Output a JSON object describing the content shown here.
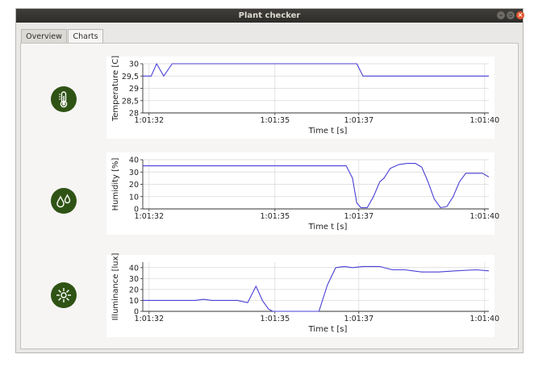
{
  "window": {
    "title": "Plant checker",
    "controls": [
      "minimize-icon",
      "maximize-icon",
      "close-icon"
    ]
  },
  "tabs": [
    {
      "label": "Overview",
      "active": false
    },
    {
      "label": "Charts",
      "active": true
    }
  ],
  "colors": {
    "icon_bg": "#2f5315",
    "series_line": "#4a3fd6",
    "grid": "#d8d8d8"
  },
  "sensor_icons": [
    "thermometer-icon",
    "water-drops-icon",
    "sun-icon"
  ],
  "chart_data": [
    {
      "type": "line",
      "xlabel": "Time t [s]",
      "ylabel": "Temperature [C]",
      "xticks": [
        "1:01:32",
        "1:01:35",
        "1:01:37",
        "1:01:40"
      ],
      "xtick_values": [
        92,
        95,
        97,
        100
      ],
      "xlim": [
        91.85,
        100.1
      ],
      "yticks": [
        "30",
        "29,5",
        "29",
        "28,5",
        "28"
      ],
      "ylim": [
        28,
        30
      ],
      "grid": true,
      "series": [
        {
          "x": [
            91.85,
            92.05,
            92.18,
            92.35,
            92.55,
            96.95,
            97.1,
            100.1
          ],
          "y": [
            29.5,
            29.5,
            30,
            29.5,
            30,
            30,
            29.5,
            29.5
          ]
        }
      ]
    },
    {
      "type": "line",
      "xlabel": "Time t [s]",
      "ylabel": "Humidity [%]",
      "xticks": [
        "1:01:32",
        "1:01:35",
        "1:01:37",
        "1:01:40"
      ],
      "xtick_values": [
        92,
        95,
        97,
        100
      ],
      "xlim": [
        91.85,
        100.1
      ],
      "yticks": [
        "40",
        "30",
        "20",
        "10",
        "0"
      ],
      "ylim": [
        0,
        40
      ],
      "grid": true,
      "series": [
        {
          "x": [
            91.85,
            96.7,
            96.85,
            96.95,
            97.05,
            97.2,
            97.35,
            97.5,
            97.6,
            97.75,
            97.95,
            98.15,
            98.35,
            98.5,
            98.65,
            98.8,
            98.95,
            99.1,
            99.25,
            99.4,
            99.55,
            99.75,
            99.95,
            100.1
          ],
          "y": [
            35,
            35,
            25,
            5,
            1,
            1,
            10,
            22,
            25,
            33,
            36,
            37,
            37,
            34,
            22,
            8,
            1,
            2,
            10,
            22,
            29,
            29,
            29,
            26
          ]
        }
      ]
    },
    {
      "type": "line",
      "xlabel": "Time t [s]",
      "ylabel": "Illuminance [lux]",
      "xticks": [
        "1:01:32",
        "1:01:35",
        "1:01:37",
        "1:01:40"
      ],
      "xtick_values": [
        92,
        95,
        97,
        100
      ],
      "xlim": [
        91.85,
        100.1
      ],
      "yticks": [
        "40",
        "30",
        "20",
        "10",
        "0"
      ],
      "ylim": [
        0,
        45
      ],
      "grid": true,
      "series": [
        {
          "x": [
            91.85,
            93.1,
            93.3,
            93.5,
            94.1,
            94.35,
            94.55,
            94.7,
            94.85,
            94.95,
            95.45,
            96.05,
            96.25,
            96.45,
            96.65,
            96.85,
            97.1,
            97.5,
            97.8,
            98.1,
            98.5,
            98.9,
            99.3,
            99.8,
            100.1
          ],
          "y": [
            10,
            10,
            11,
            10,
            10,
            8,
            23,
            10,
            2,
            0,
            0,
            0,
            24,
            40,
            41,
            40,
            41,
            41,
            38,
            38,
            36,
            36,
            37,
            38,
            37
          ]
        }
      ]
    }
  ]
}
